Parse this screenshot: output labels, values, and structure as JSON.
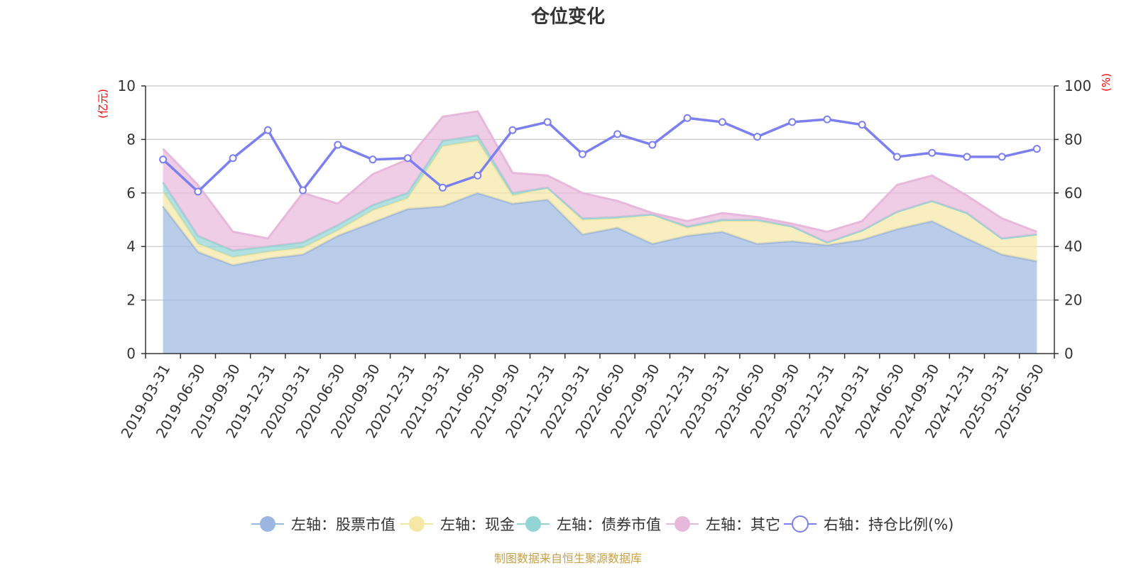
{
  "chart_data": {
    "type": "area",
    "title": "仓位变化",
    "left_axis_unit": "(亿元)",
    "right_axis_unit": "(%)",
    "categories": [
      "2019-03-31",
      "2019-06-30",
      "2019-09-30",
      "2019-12-31",
      "2020-03-31",
      "2020-06-30",
      "2020-09-30",
      "2020-12-31",
      "2021-03-31",
      "2021-06-30",
      "2021-09-30",
      "2021-12-31",
      "2022-03-31",
      "2022-06-30",
      "2022-09-30",
      "2022-12-31",
      "2023-03-31",
      "2023-06-30",
      "2023-09-30",
      "2023-12-31",
      "2024-03-31",
      "2024-06-30",
      "2024-09-30",
      "2024-12-31",
      "2025-03-31",
      "2025-06-30"
    ],
    "left_ylim": [
      0,
      10
    ],
    "left_ticks": [
      "0",
      "2",
      "4",
      "6",
      "8",
      "10"
    ],
    "right_ylim": [
      0,
      100
    ],
    "right_ticks": [
      "0",
      "20",
      "40",
      "60",
      "80",
      "100"
    ],
    "grid": true,
    "stacked": true,
    "series": [
      {
        "name": "左轴：股票市值",
        "axis": "left",
        "kind": "area",
        "color": "#9bb6e0",
        "values": [
          5.5,
          3.8,
          3.3,
          3.55,
          3.7,
          4.4,
          4.9,
          5.4,
          5.5,
          6.0,
          5.6,
          5.75,
          4.45,
          4.7,
          4.1,
          4.4,
          4.55,
          4.1,
          4.2,
          4.05,
          4.25,
          4.65,
          4.95,
          4.3,
          3.7,
          3.45
        ]
      },
      {
        "name": "左轴：现金",
        "axis": "left",
        "kind": "area",
        "color": "#f7e7a4",
        "values": [
          0.55,
          0.3,
          0.3,
          0.25,
          0.25,
          0.2,
          0.45,
          0.4,
          2.25,
          1.95,
          0.3,
          0.45,
          0.55,
          0.35,
          1.1,
          0.3,
          0.4,
          0.85,
          0.55,
          0.1,
          0.35,
          0.65,
          0.75,
          0.95,
          0.6,
          1.0
        ]
      },
      {
        "name": "左轴：债券市值",
        "axis": "left",
        "kind": "area",
        "color": "#93d4d4",
        "values": [
          0.35,
          0.3,
          0.25,
          0.2,
          0.2,
          0.2,
          0.2,
          0.2,
          0.2,
          0.2,
          0.1,
          0.0,
          0.05,
          0.05,
          0.0,
          0.05,
          0.05,
          0.05,
          0.0,
          0.0,
          0.0,
          0.0,
          0.0,
          0.0,
          0.0,
          0.0
        ]
      },
      {
        "name": "左轴：其它",
        "axis": "left",
        "kind": "area",
        "color": "#e8b8dc",
        "values": [
          1.25,
          1.9,
          0.7,
          0.3,
          1.85,
          0.8,
          1.15,
          1.25,
          0.9,
          0.9,
          0.75,
          0.45,
          0.95,
          0.6,
          0.05,
          0.2,
          0.25,
          0.1,
          0.1,
          0.4,
          0.35,
          1.0,
          0.95,
          0.65,
          0.75,
          0.1
        ]
      },
      {
        "name": "右轴：持仓比例(%)",
        "axis": "right",
        "kind": "line",
        "color": "#7b7ff0",
        "values": [
          72.5,
          60.5,
          73,
          83.5,
          61,
          78,
          72.5,
          73,
          62,
          66.5,
          83.5,
          86.5,
          74.5,
          82,
          78,
          88,
          86.5,
          81,
          86.5,
          87.5,
          85.5,
          73.5,
          75,
          73.5,
          73.5,
          76.5
        ]
      }
    ]
  },
  "legend": {
    "items": [
      {
        "label": "左轴：股票市值",
        "color": "#9bb6e0",
        "style": "filled"
      },
      {
        "label": "左轴：现金",
        "color": "#f7e7a4",
        "style": "filled"
      },
      {
        "label": "左轴：债券市值",
        "color": "#93d4d4",
        "style": "filled"
      },
      {
        "label": "左轴：其它",
        "color": "#e8b8dc",
        "style": "filled"
      },
      {
        "label": "右轴：持仓比例(%)",
        "color": "#7b7ff0",
        "style": "hollow"
      }
    ]
  },
  "source_note": "制图数据来自恒生聚源数据库",
  "colors": {
    "axis": "#333333",
    "grid": "#c8c8c8",
    "unit": "#ff0000",
    "source": "#c8a048"
  }
}
